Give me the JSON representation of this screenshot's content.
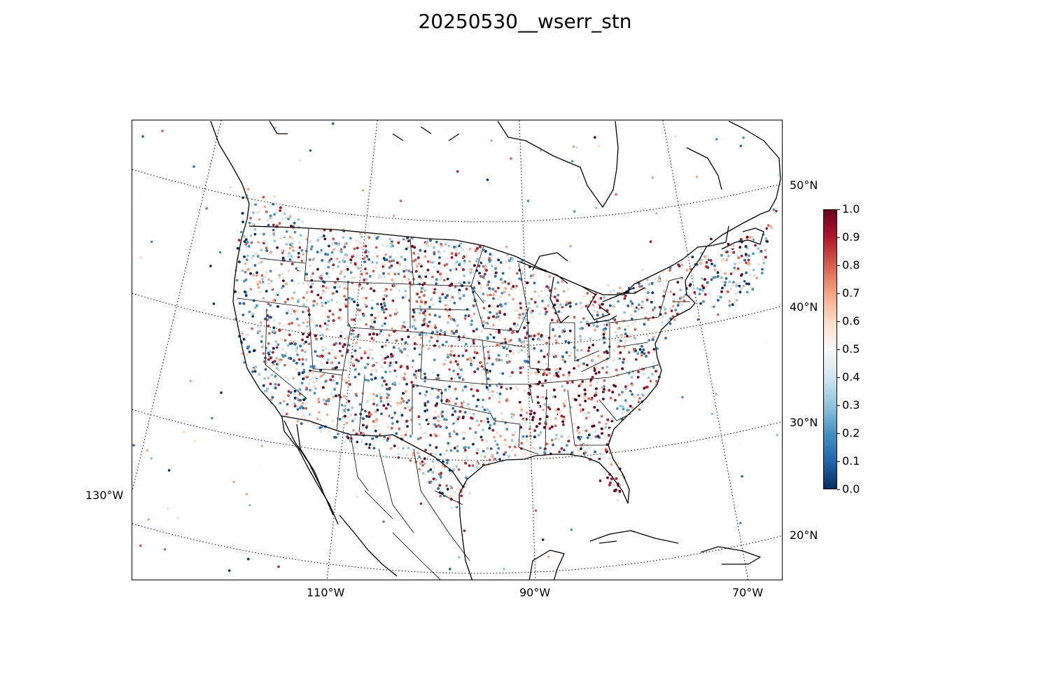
{
  "title": "20250530__wserr_stn",
  "map": {
    "projection": "Lambert Conformal Conic",
    "lat_labels": [
      "50°N",
      "40°N",
      "30°N",
      "20°N"
    ],
    "lon_labels": [
      "130°W",
      "110°W",
      "90°W",
      "70°W"
    ],
    "graticule_style": "dotted",
    "boundaries": [
      "coastlines",
      "country borders",
      "US state lines",
      "Mexican state lines"
    ]
  },
  "colorbar": {
    "colormap": "RdBu_r",
    "ticks": [
      "0.0",
      "0.1",
      "0.2",
      "0.3",
      "0.4",
      "0.5",
      "0.6",
      "0.7",
      "0.8",
      "0.9",
      "1.0"
    ],
    "range": [
      0.0,
      1.0
    ],
    "colors": [
      "#053061",
      "#2166ac",
      "#4393c3",
      "#92c5de",
      "#d1e5f0",
      "#f7f7f7",
      "#fddbc7",
      "#f4a582",
      "#d6604d",
      "#b2182b",
      "#67001f"
    ]
  }
}
